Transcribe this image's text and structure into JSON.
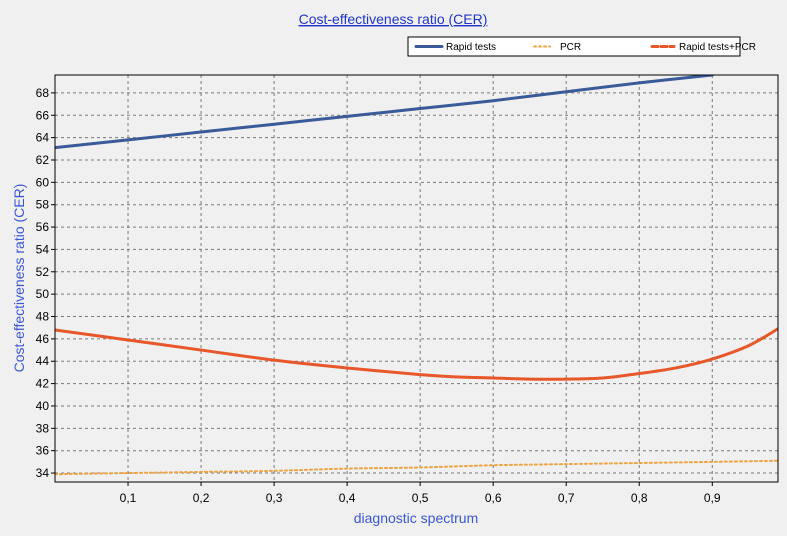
{
  "chart_data": {
    "type": "line",
    "title": "Cost-effectiveness ratio (CER)",
    "xlabel": "diagnostic spectrum",
    "ylabel": "Cost-effectiveness ratio (CER)",
    "xlim": [
      0,
      0.99
    ],
    "ylim": [
      33.2,
      69.6
    ],
    "x_ticks": [
      0.1,
      0.2,
      0.3,
      0.4,
      0.5,
      0.6,
      0.7,
      0.8,
      0.9
    ],
    "x_tick_labels": [
      "0,1",
      "0,2",
      "0,3",
      "0,4",
      "0,5",
      "0,6",
      "0,7",
      "0,8",
      "0,9"
    ],
    "y_ticks": [
      34,
      36,
      38,
      40,
      42,
      44,
      46,
      48,
      50,
      52,
      54,
      56,
      58,
      60,
      62,
      64,
      66,
      68
    ],
    "grid": true,
    "legend_position": "top-right",
    "series": [
      {
        "name": "Rapid tests",
        "color": "#3a5a9a",
        "dash": "solid",
        "x": [
          0,
          0.1,
          0.2,
          0.3,
          0.4,
          0.5,
          0.6,
          0.7,
          0.8,
          0.9
        ],
        "values": [
          63.1,
          63.8,
          64.5,
          65.2,
          65.9,
          66.6,
          67.3,
          68.1,
          68.9,
          69.6
        ]
      },
      {
        "name": "PCR",
        "color": "#f4a23c",
        "dash": "dotted",
        "x": [
          0,
          0.1,
          0.2,
          0.3,
          0.4,
          0.5,
          0.6,
          0.7,
          0.8,
          0.9,
          0.99
        ],
        "values": [
          33.9,
          34.0,
          34.1,
          34.2,
          34.4,
          34.5,
          34.7,
          34.8,
          34.9,
          35.0,
          35.1
        ]
      },
      {
        "name": "Rapid tests+PCR",
        "color": "#e8572a",
        "dash": "dashed",
        "x": [
          0,
          0.1,
          0.2,
          0.3,
          0.4,
          0.5,
          0.55,
          0.6,
          0.65,
          0.7,
          0.75,
          0.8,
          0.85,
          0.9,
          0.95,
          0.99
        ],
        "values": [
          46.8,
          45.9,
          45.0,
          44.1,
          43.4,
          42.8,
          42.6,
          42.5,
          42.4,
          42.4,
          42.5,
          42.9,
          43.4,
          44.2,
          45.4,
          46.9
        ]
      }
    ]
  }
}
